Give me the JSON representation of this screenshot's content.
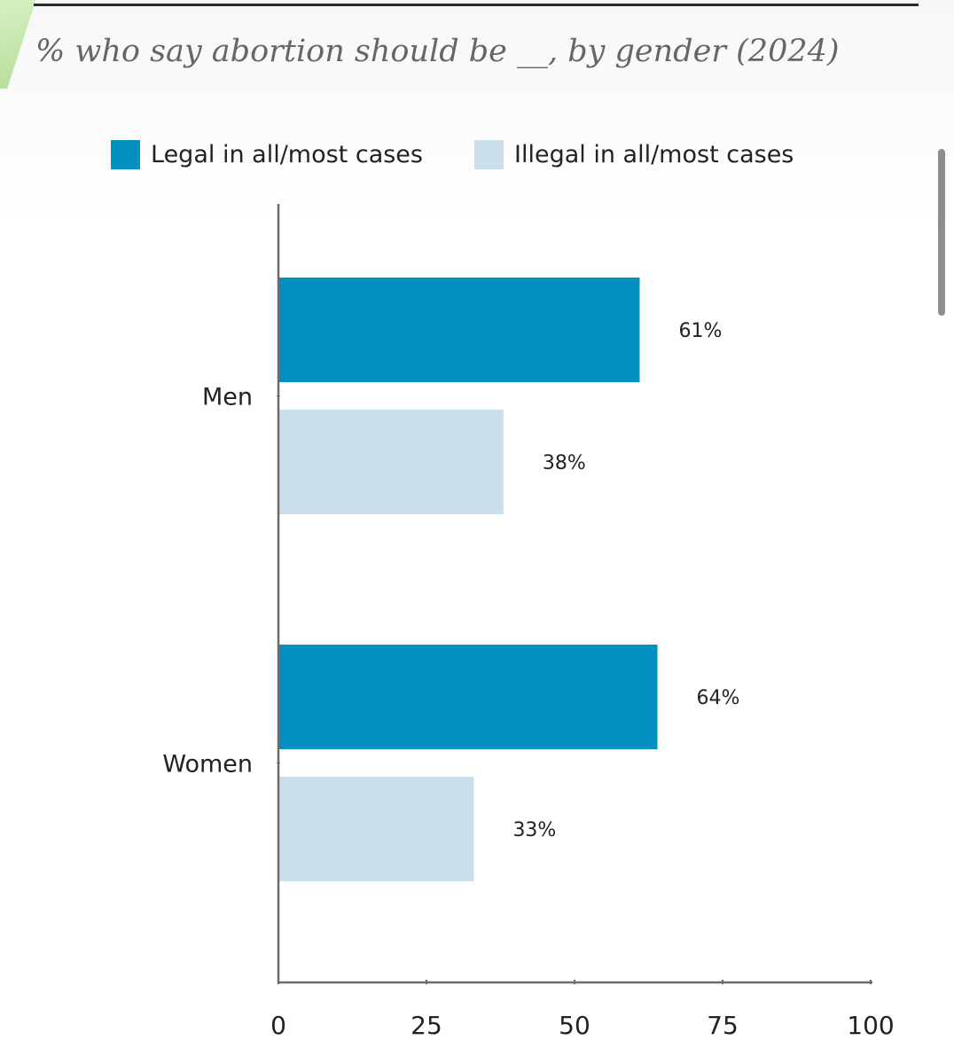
{
  "chart_data": {
    "type": "bar",
    "orientation": "horizontal",
    "title": "% who say abortion should be __, by gender (2024)",
    "categories": [
      "Men",
      "Women"
    ],
    "series": [
      {
        "name": "Legal in all/most cases",
        "values": [
          61,
          64
        ],
        "labels": [
          "61%",
          "64%"
        ],
        "color": "#0190c0"
      },
      {
        "name": "Illegal in all/most cases",
        "values": [
          38,
          33
        ],
        "labels": [
          "38%",
          "33%"
        ],
        "color": "#c9dfee"
      }
    ],
    "xlim": [
      0,
      100
    ],
    "xticks": [
      0,
      25,
      50,
      75,
      100
    ],
    "xtick_labels": [
      "0",
      "25",
      "50",
      "75",
      "100"
    ],
    "xlabel": "",
    "ylabel": "",
    "legend": "top",
    "grid": false
  },
  "colors": {
    "axis": "#6f6a66",
    "text": "#222222",
    "title": "#666666"
  }
}
